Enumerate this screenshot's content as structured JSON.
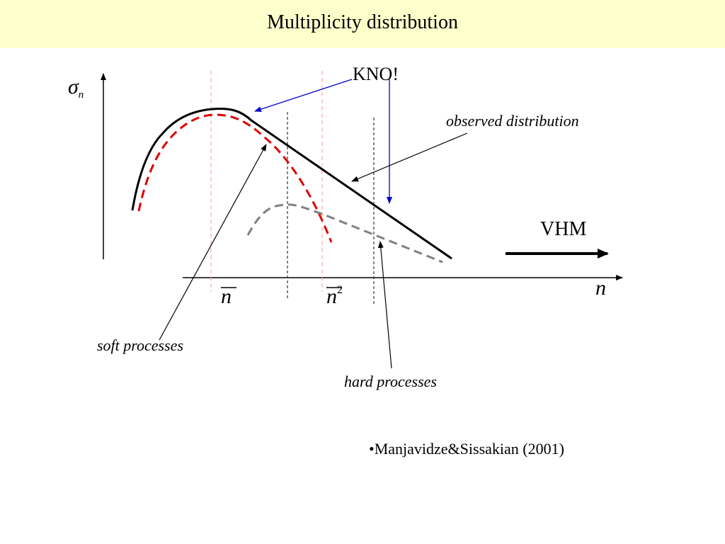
{
  "title": "Multiplicity distribution",
  "axis": {
    "y_label_main": "σ",
    "y_label_sub": "n",
    "x_label": "n",
    "tick_nbar": "n",
    "tick_nbar2_base": "n",
    "tick_nbar2_exp": "2"
  },
  "annotations": {
    "kno": "KNO!",
    "observed": "observed distribution",
    "vhm": "VHM",
    "soft": "soft processes",
    "hard": "hard processes"
  },
  "reference": "•Manjavidze&Sissakian (2001)",
  "colors": {
    "title_bg": "#ffffcc",
    "observed_curve": "#000000",
    "soft_curve": "#dd0000",
    "hard_curve": "#808080",
    "kno_arrows": "#0000cc",
    "guide_lines_pink": "#ff9999"
  }
}
